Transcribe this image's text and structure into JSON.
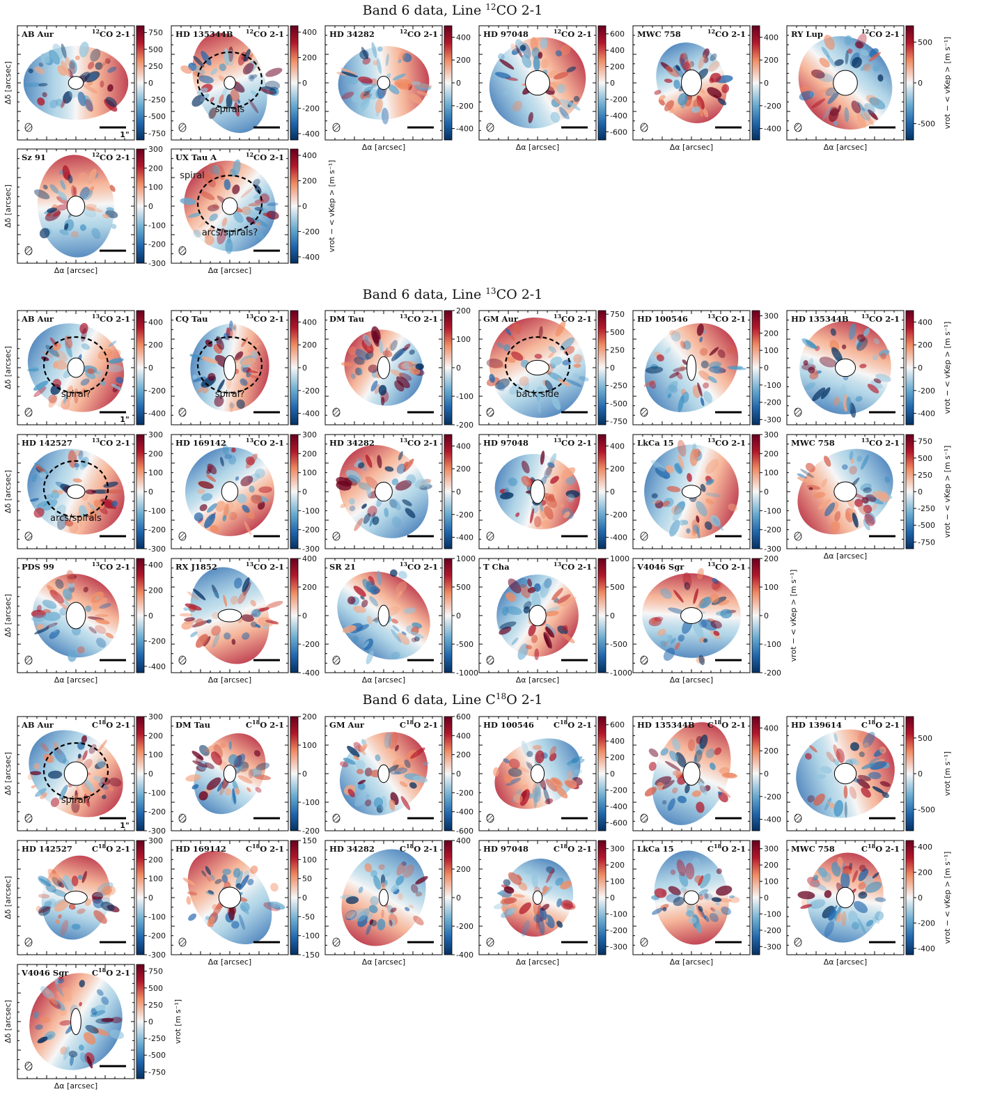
{
  "sections": [
    {
      "title": {
        "pre": "Band 6 data, Line ",
        "sup": "12",
        "post": "CO 2-1"
      },
      "rows": [
        [
          {
            "name": "AB Aur",
            "line": {
              "sup": "12",
              "post": "CO 2-1"
            },
            "clim": [
              -850,
              850
            ],
            "cticks": [
              -750,
              -500,
              -250,
              0,
              250,
              500,
              750
            ],
            "ylabel": "Δδ [arcsec]",
            "scale_label": "1\""
          },
          {
            "name": "HD 135344B",
            "line": {
              "sup": "12",
              "post": "CO 2-1"
            },
            "clim": [
              -450,
              450
            ],
            "cticks": [
              -400,
              -200,
              0,
              200,
              400
            ],
            "annotations": [
              "spirals"
            ]
          },
          {
            "name": "HD 34282",
            "line": {
              "sup": "12",
              "post": "CO 2-1"
            },
            "clim": [
              -500,
              500
            ],
            "cticks": [
              -400,
              -200,
              0,
              200,
              400
            ],
            "xlabel": "Δα [arcsec]"
          },
          {
            "name": "HD 97048",
            "line": {
              "sup": "12",
              "post": "CO 2-1"
            },
            "clim": [
              -700,
              700
            ],
            "cticks": [
              -600,
              -400,
              -200,
              0,
              200,
              400,
              600
            ],
            "xlabel": "Δα [arcsec]"
          },
          {
            "name": "MWC 758",
            "line": {
              "sup": "12",
              "post": "CO 2-1"
            },
            "clim": [
              -500,
              500
            ],
            "cticks": [
              -400,
              -200,
              0,
              200,
              400
            ],
            "xlabel": "Δα [arcsec]"
          },
          {
            "name": "RY Lup",
            "line": {
              "sup": "12",
              "post": "CO 2-1"
            },
            "clim": [
              -700,
              700
            ],
            "cticks": [
              -500,
              0,
              500
            ],
            "xlabel": "Δα [arcsec]",
            "cbar_label": "vrot − < vKep > [m s⁻¹]"
          }
        ],
        [
          {
            "name": "Sz 91",
            "line": {
              "sup": "12",
              "post": "CO 2-1"
            },
            "clim": [
              -300,
              300
            ],
            "cticks": [
              -300,
              -200,
              -100,
              0,
              100,
              200,
              300
            ],
            "ylabel": "Δδ [arcsec]",
            "xlabel": "Δα [arcsec]"
          },
          {
            "name": "UX Tau A",
            "line": {
              "sup": "12",
              "post": "CO 2-1"
            },
            "clim": [
              -450,
              450
            ],
            "cticks": [
              -400,
              -200,
              0,
              200,
              400
            ],
            "xlabel": "Δα [arcsec]",
            "cbar_label": "vrot − < vKep > [m s⁻¹]",
            "annotations": [
              "arcs/spirals?",
              "spiral"
            ]
          }
        ]
      ]
    },
    {
      "title": {
        "pre": "Band 6 data, Line ",
        "sup": "13",
        "post": "CO 2-1"
      },
      "rows": [
        [
          {
            "name": "AB Aur",
            "line": {
              "sup": "13",
              "post": "CO 2-1"
            },
            "clim": [
              -500,
              500
            ],
            "cticks": [
              -400,
              -200,
              0,
              200,
              400
            ],
            "ylabel": "Δδ [arcsec]",
            "annotations": [
              "spiral?"
            ],
            "scale_label": "1\""
          },
          {
            "name": "CQ Tau",
            "line": {
              "sup": "13",
              "post": "CO 2-1"
            },
            "clim": [
              -500,
              500
            ],
            "cticks": [
              -400,
              -200,
              0,
              200,
              400
            ],
            "annotations": [
              "spiral?"
            ]
          },
          {
            "name": "DM Tau",
            "line": {
              "sup": "13",
              "post": "CO 2-1"
            },
            "clim": [
              -200,
              200
            ],
            "cticks": [
              -200,
              -100,
              0,
              100,
              200
            ]
          },
          {
            "name": "GM Aur",
            "line": {
              "sup": "13",
              "post": "CO 2-1"
            },
            "clim": [
              -800,
              800
            ],
            "cticks": [
              -750,
              -500,
              -250,
              0,
              250,
              500,
              750
            ],
            "annotations": [
              "back side"
            ]
          },
          {
            "name": "HD 100546",
            "line": {
              "sup": "13",
              "post": "CO 2-1"
            },
            "clim": [
              -330,
              330
            ],
            "cticks": [
              -300,
              -200,
              -100,
              0,
              100,
              200,
              300
            ]
          },
          {
            "name": "HD 135344B",
            "line": {
              "sup": "13",
              "post": "CO 2-1"
            },
            "clim": [
              -500,
              500
            ],
            "cticks": [
              -400,
              -200,
              0,
              200,
              400
            ],
            "cbar_label": "vrot − < vKep > [m s⁻¹]"
          }
        ],
        [
          {
            "name": "HD 142527",
            "line": {
              "sup": "13",
              "post": "CO 2-1"
            },
            "clim": [
              -300,
              300
            ],
            "cticks": [
              -300,
              -200,
              -100,
              0,
              100,
              200,
              300
            ],
            "ylabel": "Δδ [arcsec]",
            "annotations": [
              "arcs/spirals"
            ]
          },
          {
            "name": "HD 169142",
            "line": {
              "sup": "13",
              "post": "CO 2-1"
            },
            "clim": [
              -300,
              300
            ],
            "cticks": [
              -300,
              -200,
              -100,
              0,
              100,
              200,
              300
            ]
          },
          {
            "name": "HD 34282",
            "line": {
              "sup": "13",
              "post": "CO 2-1"
            },
            "clim": [
              -500,
              500
            ],
            "cticks": [
              -400,
              -200,
              0,
              200,
              400
            ]
          },
          {
            "name": "HD 97048",
            "line": {
              "sup": "13",
              "post": "CO 2-1"
            },
            "clim": [
              -500,
              500
            ],
            "cticks": [
              -400,
              -200,
              0,
              200,
              400
            ]
          },
          {
            "name": "LkCa 15",
            "line": {
              "sup": "13",
              "post": "CO 2-1"
            },
            "clim": [
              -300,
              300
            ],
            "cticks": [
              -300,
              -200,
              -100,
              0,
              100,
              200,
              300
            ]
          },
          {
            "name": "MWC 758",
            "line": {
              "sup": "13",
              "post": "CO 2-1"
            },
            "clim": [
              -850,
              850
            ],
            "cticks": [
              -750,
              -500,
              -250,
              0,
              250,
              500,
              750
            ],
            "xlabel": "Δα [arcsec]",
            "cbar_label": "vrot − < vKep > [m s⁻¹]"
          }
        ],
        [
          {
            "name": "PDS 99",
            "line": {
              "sup": "13",
              "post": "CO 2-1"
            },
            "clim": [
              -450,
              450
            ],
            "cticks": [
              -400,
              -200,
              0,
              200,
              400
            ],
            "ylabel": "Δδ [arcsec]",
            "xlabel": "Δα [arcsec]"
          },
          {
            "name": "RX J1852",
            "line": {
              "sup": "13",
              "post": "CO 2-1"
            },
            "clim": [
              -400,
              400
            ],
            "cticks": [
              -400,
              -200,
              0,
              200,
              400
            ],
            "xlabel": "Δα [arcsec]"
          },
          {
            "name": "SR 21",
            "line": {
              "sup": "13",
              "post": "CO 2-1"
            },
            "clim": [
              -1000,
              1000
            ],
            "cticks": [
              -1000,
              -500,
              0,
              500,
              1000
            ],
            "xlabel": "Δα [arcsec]"
          },
          {
            "name": "T Cha",
            "line": {
              "sup": "13",
              "post": "CO 2-1"
            },
            "clim": [
              -1000,
              1000
            ],
            "cticks": [
              -1000,
              -500,
              0,
              500,
              1000
            ],
            "xlabel": "Δα [arcsec]"
          },
          {
            "name": "V4046 Sgr",
            "line": {
              "sup": "13",
              "post": "CO 2-1"
            },
            "clim": [
              -200,
              200
            ],
            "cticks": [
              -200,
              -100,
              0,
              100,
              200
            ],
            "xlabel": "Δα [arcsec]",
            "cbar_label": "vrot − < vKep > [m s⁻¹]"
          }
        ]
      ]
    },
    {
      "title": {
        "pre": "Band 6 data, Line C",
        "sup": "18",
        "post": "O 2-1"
      },
      "rows": [
        [
          {
            "name": "AB Aur",
            "line": {
              "pre": "C",
              "sup": "18",
              "post": "O 2-1"
            },
            "clim": [
              -300,
              300
            ],
            "cticks": [
              -300,
              -200,
              -100,
              0,
              100,
              200,
              300
            ],
            "ylabel": "Δδ [arcsec]",
            "annotations": [
              "spiral?"
            ],
            "scale_label": "1\""
          },
          {
            "name": "DM Tau",
            "line": {
              "pre": "C",
              "sup": "18",
              "post": "O 2-1"
            },
            "clim": [
              -200,
              200
            ],
            "cticks": [
              -200,
              -100,
              0,
              100,
              200
            ]
          },
          {
            "name": "GM Aur",
            "line": {
              "pre": "C",
              "sup": "18",
              "post": "O 2-1"
            },
            "clim": [
              -600,
              600
            ],
            "cticks": [
              -600,
              -400,
              -200,
              0,
              200,
              400,
              600
            ]
          },
          {
            "name": "HD 100546",
            "line": {
              "pre": "C",
              "sup": "18",
              "post": "O 2-1"
            },
            "clim": [
              -700,
              700
            ],
            "cticks": [
              -600,
              -400,
              -200,
              0,
              200,
              400,
              600
            ]
          },
          {
            "name": "HD 135344B",
            "line": {
              "pre": "C",
              "sup": "18",
              "post": "O 2-1"
            },
            "clim": [
              -500,
              500
            ],
            "cticks": [
              -400,
              -200,
              0,
              200,
              400
            ]
          },
          {
            "name": "HD 139614",
            "line": {
              "pre": "C",
              "sup": "18",
              "post": "O 2-1"
            },
            "clim": [
              -800,
              800
            ],
            "cticks": [
              -500,
              0,
              500
            ],
            "cbar_label": "vrot [m s⁻¹]"
          }
        ],
        [
          {
            "name": "HD 142527",
            "line": {
              "pre": "C",
              "sup": "18",
              "post": "O 2-1"
            },
            "clim": [
              -300,
              300
            ],
            "cticks": [
              -300,
              -200,
              -100,
              0,
              100,
              200,
              300
            ],
            "ylabel": "Δδ [arcsec]"
          },
          {
            "name": "HD 169142",
            "line": {
              "pre": "C",
              "sup": "18",
              "post": "O 2-1"
            },
            "clim": [
              -150,
              150
            ],
            "cticks": [
              -150,
              -100,
              -50,
              0,
              50,
              100,
              150
            ],
            "xlabel": "Δα [arcsec]"
          },
          {
            "name": "HD 34282",
            "line": {
              "pre": "C",
              "sup": "18",
              "post": "O 2-1"
            },
            "clim": [
              -400,
              400
            ],
            "cticks": [
              -400,
              -200,
              0,
              200,
              400
            ],
            "xlabel": "Δα [arcsec]"
          },
          {
            "name": "HD 97048",
            "line": {
              "pre": "C",
              "sup": "18",
              "post": "O 2-1"
            },
            "clim": [
              -350,
              350
            ],
            "cticks": [
              -300,
              -200,
              -100,
              0,
              100,
              200,
              300
            ],
            "xlabel": "Δα [arcsec]"
          },
          {
            "name": "LkCa 15",
            "line": {
              "pre": "C",
              "sup": "18",
              "post": "O 2-1"
            },
            "clim": [
              -350,
              350
            ],
            "cticks": [
              -300,
              -200,
              -100,
              0,
              100,
              200,
              300
            ],
            "xlabel": "Δα [arcsec]"
          },
          {
            "name": "MWC 758",
            "line": {
              "pre": "C",
              "sup": "18",
              "post": "O 2-1"
            },
            "clim": [
              -450,
              450
            ],
            "cticks": [
              -400,
              -200,
              0,
              200,
              400
            ],
            "xlabel": "Δα [arcsec]",
            "cbar_label": "vrot − < vKep > [m s⁻¹]"
          }
        ],
        [
          {
            "name": "V4046 Sgr",
            "line": {
              "pre": "C",
              "sup": "18",
              "post": "O 2-1"
            },
            "clim": [
              -850,
              850
            ],
            "cticks": [
              -750,
              -500,
              -250,
              0,
              250,
              500,
              750
            ],
            "ylabel": "Δδ [arcsec]",
            "xlabel": "Δα [arcsec]",
            "cbar_label": "vrot [m s⁻¹]"
          }
        ]
      ]
    }
  ]
}
